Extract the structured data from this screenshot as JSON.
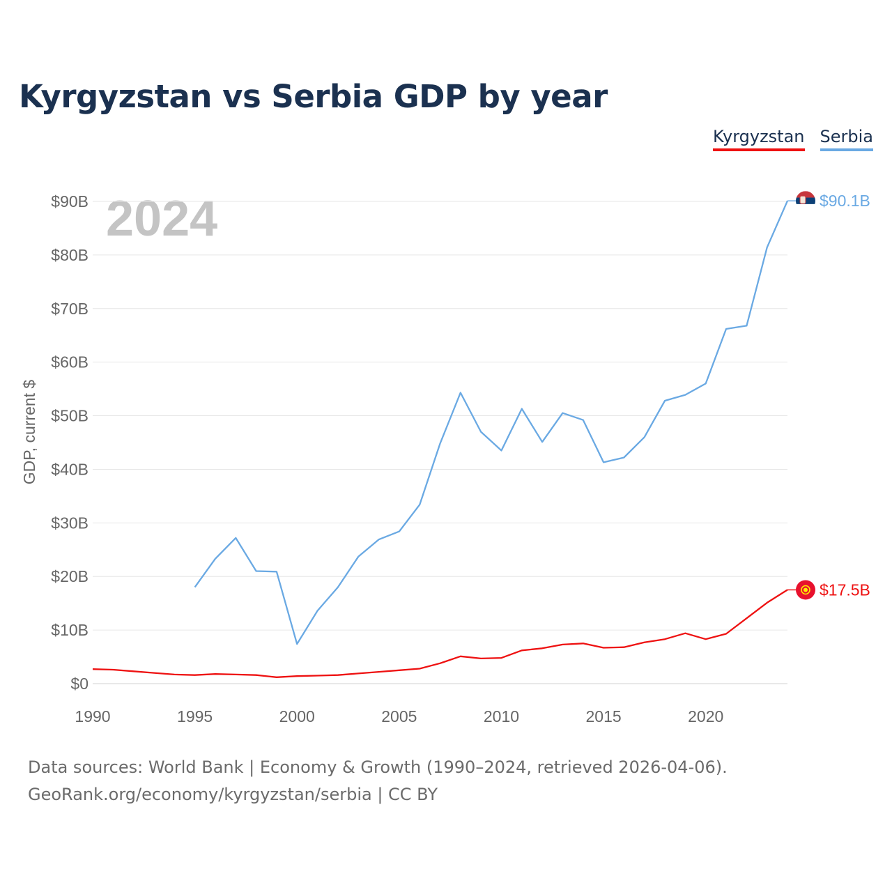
{
  "title": "Kyrgyzstan vs Serbia GDP by year",
  "legend": [
    "Kyrgyzstan",
    "Serbia"
  ],
  "year_label": "2024",
  "footer": {
    "line1": "Data sources: World Bank | Economy & Growth (1990–2024, retrieved 2026-04-06).",
    "line2": "GeoRank.org/economy/kyrgyzstan/serbia | CC BY"
  },
  "chart_data": {
    "type": "line",
    "title": "Kyrgyzstan vs Serbia GDP by year",
    "xlabel": "",
    "ylabel": "GDP, current $",
    "xlim": [
      1990,
      2024
    ],
    "ylim": [
      0,
      90
    ],
    "grid": true,
    "legend_position": "top-right",
    "x_ticks": [
      1990,
      1995,
      2000,
      2005,
      2010,
      2015,
      2020
    ],
    "y_ticks": [
      0,
      10,
      20,
      30,
      40,
      50,
      60,
      70,
      80,
      90
    ],
    "y_tick_labels": [
      "$0",
      "$10B",
      "$20B",
      "$30B",
      "$40B",
      "$50B",
      "$60B",
      "$70B",
      "$80B",
      "$90B"
    ],
    "series": [
      {
        "name": "Kyrgyzstan",
        "color": "#ee1111",
        "end_label": "$17.5B",
        "x": [
          1990,
          1991,
          1992,
          1993,
          1994,
          1995,
          1996,
          1997,
          1998,
          1999,
          2000,
          2001,
          2002,
          2003,
          2004,
          2005,
          2006,
          2007,
          2008,
          2009,
          2010,
          2011,
          2012,
          2013,
          2014,
          2015,
          2016,
          2017,
          2018,
          2019,
          2020,
          2021,
          2022,
          2023,
          2024
        ],
        "values": [
          2.7,
          2.6,
          2.3,
          2.0,
          1.7,
          1.6,
          1.8,
          1.7,
          1.6,
          1.2,
          1.4,
          1.5,
          1.6,
          1.9,
          2.2,
          2.5,
          2.8,
          3.8,
          5.1,
          4.7,
          4.8,
          6.2,
          6.6,
          7.3,
          7.5,
          6.7,
          6.8,
          7.7,
          8.3,
          9.4,
          8.3,
          9.3,
          12.2,
          15.1,
          17.5
        ]
      },
      {
        "name": "Serbia",
        "color": "#6aa9e3",
        "end_label": "$90.1B",
        "x": [
          1995,
          1996,
          1997,
          1998,
          1999,
          2000,
          2001,
          2002,
          2003,
          2004,
          2005,
          2006,
          2007,
          2008,
          2009,
          2010,
          2011,
          2012,
          2013,
          2014,
          2015,
          2016,
          2017,
          2018,
          2019,
          2020,
          2021,
          2022,
          2023,
          2024
        ],
        "values": [
          18.0,
          23.3,
          27.2,
          21.0,
          20.9,
          7.4,
          13.6,
          18.0,
          23.7,
          26.9,
          28.4,
          33.4,
          44.8,
          54.3,
          47.0,
          43.5,
          51.3,
          45.1,
          50.5,
          49.2,
          41.3,
          42.2,
          46.0,
          52.8,
          53.9,
          56.0,
          66.2,
          66.8,
          81.4,
          90.1
        ]
      }
    ]
  }
}
